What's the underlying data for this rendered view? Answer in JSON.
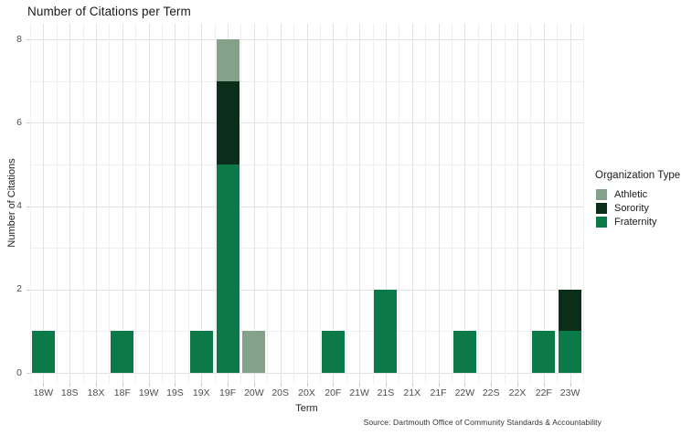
{
  "chart": {
    "title": "Number of Citations per Term",
    "xlabel": "Term",
    "ylabel": "Number of Citations",
    "source": "Source: Dartmouth Office of Community Standards & Accountability"
  },
  "legend": {
    "title": "Organization Type",
    "items": [
      {
        "label": "Athletic",
        "color": "#84a18a"
      },
      {
        "label": "Sorority",
        "color": "#0b2e1b"
      },
      {
        "label": "Fraternity",
        "color": "#0b7a48"
      }
    ]
  },
  "chart_data": {
    "type": "bar",
    "stacked": true,
    "title": "Number of Citations per Term",
    "xlabel": "Term",
    "ylabel": "Number of Citations",
    "legend_title": "Organization Type",
    "legend_position": "right",
    "grid": true,
    "ylim": [
      0,
      8
    ],
    "yticks": [
      0,
      2,
      4,
      6,
      8
    ],
    "categories": [
      "18W",
      "18S",
      "18X",
      "18F",
      "19W",
      "19S",
      "19X",
      "19F",
      "20W",
      "20S",
      "20X",
      "20F",
      "21W",
      "21S",
      "21X",
      "21F",
      "22W",
      "22S",
      "22X",
      "22F",
      "23W"
    ],
    "series": [
      {
        "name": "Fraternity",
        "color": "#0b7a48",
        "values": [
          1,
          0,
          0,
          1,
          0,
          0,
          1,
          5,
          0,
          0,
          0,
          1,
          0,
          2,
          0,
          0,
          1,
          0,
          0,
          1,
          1
        ]
      },
      {
        "name": "Sorority",
        "color": "#0b2e1b",
        "values": [
          0,
          0,
          0,
          0,
          0,
          0,
          0,
          2,
          0,
          0,
          0,
          0,
          0,
          0,
          0,
          0,
          0,
          0,
          0,
          0,
          1
        ]
      },
      {
        "name": "Athletic",
        "color": "#84a18a",
        "values": [
          0,
          0,
          0,
          0,
          0,
          0,
          0,
          1,
          1,
          0,
          0,
          0,
          0,
          0,
          0,
          0,
          0,
          0,
          0,
          0,
          0
        ]
      }
    ]
  }
}
